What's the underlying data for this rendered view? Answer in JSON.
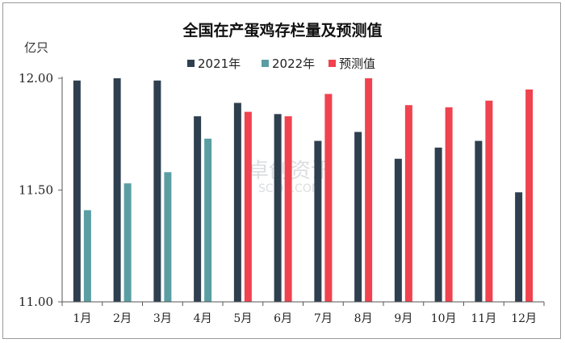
{
  "chart_data": {
    "type": "bar",
    "title": "全国在产蛋鸡存栏量及预测值",
    "ylabel": "亿只",
    "ylim": [
      11.0,
      12.0
    ],
    "yticks": [
      "11.00",
      "11.50",
      "12.00"
    ],
    "ytick_values": [
      11.0,
      11.5,
      12.0
    ],
    "legend_position": "top",
    "categories": [
      "1月",
      "2月",
      "3月",
      "4月",
      "5月",
      "6月",
      "7月",
      "8月",
      "9月",
      "10月",
      "11月",
      "12月"
    ],
    "series": [
      {
        "name": "2021年",
        "color": "#2e3f4f",
        "values": [
          11.99,
          12.0,
          11.99,
          11.83,
          11.89,
          11.84,
          11.72,
          11.76,
          11.64,
          11.69,
          11.72,
          11.49
        ]
      },
      {
        "name": "2022年",
        "color": "#5a9ea3",
        "values": [
          11.41,
          11.53,
          11.58,
          11.73,
          null,
          null,
          null,
          null,
          null,
          null,
          null,
          null
        ]
      },
      {
        "name": "预测值",
        "color": "#f0424f",
        "values": [
          null,
          null,
          null,
          null,
          11.85,
          11.83,
          11.93,
          12.0,
          11.88,
          11.87,
          11.9,
          11.95
        ]
      }
    ],
    "watermark": [
      "卓创资讯",
      "SCI99.COM"
    ]
  }
}
